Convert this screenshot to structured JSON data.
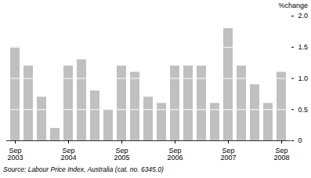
{
  "chart_data": {
    "type": "bar",
    "ylabel": "%change",
    "caption": "Source: Labour Price Index, Australia (cat. no. 6345.0)",
    "categories": [
      "Sep\n2003",
      null,
      null,
      null,
      "Sep\n2004",
      null,
      null,
      null,
      "Sep\n2005",
      null,
      null,
      null,
      "Sep\n2006",
      null,
      null,
      null,
      "Sep\n2007",
      null,
      null,
      null,
      "Sep\n2008"
    ],
    "values": [
      1.5,
      1.2,
      0.7,
      0.2,
      1.2,
      1.3,
      0.8,
      0.5,
      1.2,
      1.1,
      0.7,
      0.6,
      1.2,
      1.2,
      1.2,
      0.6,
      1.8,
      1.2,
      0.9,
      0.6,
      1.1
    ],
    "color": "#c0c0c0",
    "ylim": [
      0,
      2
    ],
    "yticks": [
      0,
      0.5,
      {
        "value": 1,
        "label": "1.0"
      },
      1.5,
      {
        "value": 2,
        "label": "2.0"
      }
    ],
    "grid": true
  }
}
